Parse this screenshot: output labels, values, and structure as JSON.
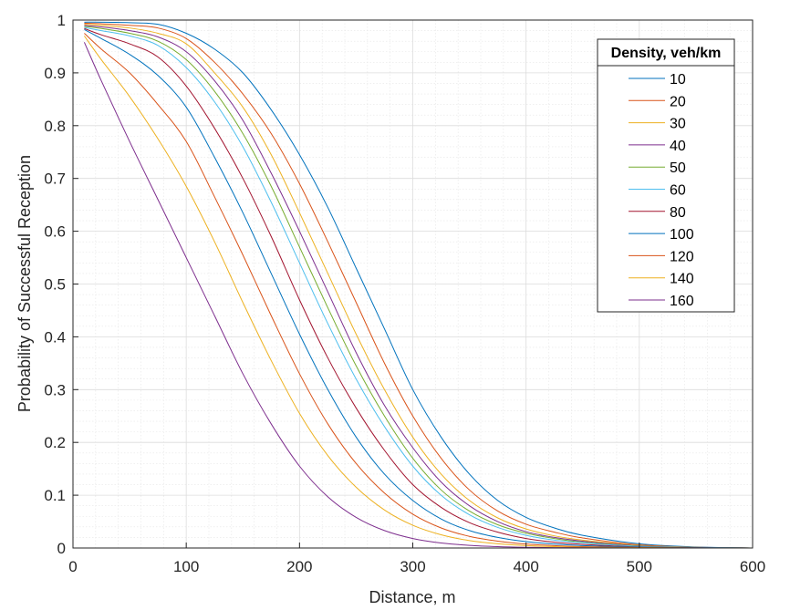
{
  "chart_data": {
    "type": "line",
    "xlabel": "Distance, m",
    "ylabel": "Probability of Successful Reception",
    "xlim": [
      0,
      600
    ],
    "ylim": [
      0,
      1
    ],
    "xticks": [
      "0",
      "100",
      "200",
      "300",
      "400",
      "500",
      "600"
    ],
    "yticks": [
      "0",
      "0.1",
      "0.2",
      "0.3",
      "0.4",
      "0.5",
      "0.6",
      "0.7",
      "0.8",
      "0.9",
      "1"
    ],
    "grid": true,
    "minor_grid": true,
    "legend": {
      "title": "Density, veh/km",
      "position": "top-right"
    },
    "colors": [
      "#0072BD",
      "#D95319",
      "#EDB120",
      "#7E2F8E",
      "#77AC30",
      "#4DBEEE",
      "#A2142F"
    ],
    "x": [
      10,
      25,
      50,
      75,
      100,
      125,
      150,
      175,
      200,
      225,
      250,
      275,
      300,
      325,
      350,
      375,
      400,
      425,
      450,
      500,
      550,
      600
    ],
    "series": [
      {
        "name": "10",
        "color": "#0072BD",
        "values": [
          0.996,
          0.996,
          0.995,
          0.992,
          0.975,
          0.945,
          0.9,
          0.83,
          0.745,
          0.645,
          0.53,
          0.415,
          0.3,
          0.21,
          0.14,
          0.09,
          0.058,
          0.038,
          0.024,
          0.008,
          0.002,
          0.0
        ]
      },
      {
        "name": "20",
        "color": "#D95319",
        "values": [
          0.994,
          0.993,
          0.99,
          0.985,
          0.965,
          0.92,
          0.86,
          0.785,
          0.69,
          0.58,
          0.465,
          0.35,
          0.25,
          0.17,
          0.11,
          0.07,
          0.045,
          0.03,
          0.019,
          0.006,
          0.0015,
          0.0
        ]
      },
      {
        "name": "30",
        "color": "#EDB120",
        "values": [
          0.992,
          0.99,
          0.985,
          0.975,
          0.955,
          0.9,
          0.835,
          0.745,
          0.635,
          0.52,
          0.405,
          0.3,
          0.21,
          0.14,
          0.09,
          0.057,
          0.036,
          0.023,
          0.015,
          0.005,
          0.001,
          0.0
        ]
      },
      {
        "name": "40",
        "color": "#7E2F8E",
        "values": [
          0.99,
          0.987,
          0.98,
          0.968,
          0.94,
          0.885,
          0.81,
          0.71,
          0.6,
          0.485,
          0.37,
          0.27,
          0.19,
          0.125,
          0.08,
          0.05,
          0.031,
          0.02,
          0.013,
          0.004,
          0.001,
          0.0
        ]
      },
      {
        "name": "50",
        "color": "#77AC30",
        "values": [
          0.988,
          0.984,
          0.975,
          0.96,
          0.925,
          0.865,
          0.785,
          0.685,
          0.57,
          0.455,
          0.345,
          0.25,
          0.17,
          0.11,
          0.07,
          0.044,
          0.028,
          0.018,
          0.011,
          0.0035,
          0.001,
          0.0
        ]
      },
      {
        "name": "60",
        "color": "#4DBEEE",
        "values": [
          0.986,
          0.98,
          0.97,
          0.952,
          0.91,
          0.845,
          0.76,
          0.655,
          0.54,
          0.425,
          0.32,
          0.23,
          0.155,
          0.1,
          0.063,
          0.039,
          0.024,
          0.015,
          0.01,
          0.003,
          0.001,
          0.0
        ]
      },
      {
        "name": "80",
        "color": "#A2142F",
        "values": [
          0.984,
          0.972,
          0.955,
          0.93,
          0.875,
          0.795,
          0.7,
          0.59,
          0.47,
          0.36,
          0.265,
          0.185,
          0.12,
          0.077,
          0.048,
          0.03,
          0.018,
          0.011,
          0.007,
          0.002,
          0.0005,
          0.0
        ]
      },
      {
        "name": "100",
        "color": "#0072BD",
        "values": [
          0.982,
          0.965,
          0.935,
          0.895,
          0.835,
          0.74,
          0.635,
          0.52,
          0.405,
          0.3,
          0.21,
          0.14,
          0.09,
          0.055,
          0.033,
          0.02,
          0.012,
          0.0075,
          0.0045,
          0.0015,
          0.0004,
          0.0
        ]
      },
      {
        "name": "120",
        "color": "#D95319",
        "values": [
          0.975,
          0.945,
          0.9,
          0.84,
          0.77,
          0.665,
          0.555,
          0.44,
          0.33,
          0.235,
          0.16,
          0.104,
          0.064,
          0.038,
          0.022,
          0.013,
          0.0075,
          0.0045,
          0.0025,
          0.0008,
          0.0002,
          0.0
        ]
      },
      {
        "name": "140",
        "color": "#EDB120",
        "values": [
          0.97,
          0.925,
          0.855,
          0.775,
          0.685,
          0.58,
          0.465,
          0.355,
          0.255,
          0.175,
          0.115,
          0.072,
          0.043,
          0.025,
          0.014,
          0.008,
          0.0045,
          0.0025,
          0.0014,
          0.0004,
          0.0001,
          0.0
        ]
      },
      {
        "name": "160",
        "color": "#7E2F8E",
        "values": [
          0.958,
          0.885,
          0.77,
          0.66,
          0.55,
          0.44,
          0.33,
          0.235,
          0.155,
          0.097,
          0.058,
          0.033,
          0.018,
          0.0095,
          0.005,
          0.0026,
          0.0013,
          0.0007,
          0.0004,
          0.0001,
          0.0,
          0.0
        ]
      }
    ]
  }
}
